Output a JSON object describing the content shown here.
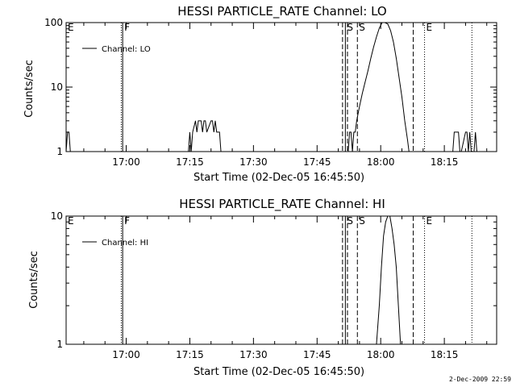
{
  "footer": {
    "timestamp": "2-Dec-2009 22:59"
  },
  "chart_data": [
    {
      "type": "line",
      "title": "HESSI PARTICLE_RATE Channel: LO",
      "xlabel": "Start Time (02-Dec-05 16:45:50)",
      "ylabel": "Counts/sec",
      "yscale": "log",
      "ylim": [
        1,
        100
      ],
      "xlim": [
        "16:45:50",
        "18:27:20"
      ],
      "x_tick_labels": [
        "17:00",
        "17:15",
        "17:30",
        "17:45",
        "18:00",
        "18:15"
      ],
      "y_tick_labels": [
        "1",
        "10",
        "100"
      ],
      "legend": {
        "entries": [
          "Channel: LO"
        ],
        "placement": "top-left"
      },
      "color": "#000000",
      "series": [
        {
          "name": "Channel: LO",
          "x": [
            "16:45:50",
            "16:46:10",
            "16:46:30",
            "16:46:50",
            "16:47:10",
            "17:14:40",
            "17:15:00",
            "17:15:20",
            "17:15:40",
            "17:16:20",
            "17:16:40",
            "17:17:00",
            "17:17:40",
            "17:18:00",
            "17:18:20",
            "17:18:40",
            "17:19:00",
            "17:20:00",
            "17:20:20",
            "17:20:40",
            "17:21:00",
            "17:21:20",
            "17:22:00",
            "17:22:20",
            "17:22:40",
            "17:23:20",
            "17:52:00",
            "17:52:20",
            "17:52:40",
            "17:53:00",
            "17:53:20",
            "17:53:40",
            "17:54:00",
            "17:54:20",
            "17:55:00",
            "17:55:40",
            "17:56:20",
            "17:57:00",
            "17:57:40",
            "17:58:20",
            "17:59:00",
            "17:59:40",
            "18:00:20",
            "18:01:00",
            "18:01:40",
            "18:02:20",
            "18:03:00",
            "18:03:40",
            "18:04:20",
            "18:05:00",
            "18:05:40",
            "18:06:20",
            "18:06:40",
            "18:17:00",
            "18:17:20",
            "18:17:40",
            "18:18:20",
            "18:18:40",
            "18:19:00",
            "18:20:00",
            "18:20:20",
            "18:20:40",
            "18:21:00",
            "18:21:20",
            "18:22:00",
            "18:22:20",
            "18:22:40"
          ],
          "y": [
            1,
            2,
            2,
            1,
            1,
            1,
            2,
            1,
            2,
            3,
            2,
            3,
            3,
            2,
            3,
            3,
            2,
            3,
            3,
            2,
            3,
            2,
            2,
            1,
            1,
            1,
            1,
            1,
            2,
            2,
            1,
            2,
            2,
            3,
            5,
            8,
            12,
            18,
            28,
            42,
            60,
            82,
            100,
            105,
            95,
            75,
            50,
            28,
            14,
            7,
            3,
            1.5,
            1,
            1,
            2,
            2,
            2,
            1,
            1,
            2,
            2,
            1,
            2,
            1,
            1,
            2,
            1
          ]
        }
      ],
      "annotations": [
        {
          "label": "E",
          "time": "16:45:50",
          "style": "solid"
        },
        {
          "label": "",
          "time": "16:58:50",
          "style": "dotted"
        },
        {
          "label": "F",
          "time": "16:59:10",
          "style": "solid"
        },
        {
          "label": "",
          "time": "17:51:00",
          "style": "dashed"
        },
        {
          "label": "S",
          "time": "17:51:40",
          "style": "solid"
        },
        {
          "label": "",
          "time": "17:52:10",
          "style": "dashed"
        },
        {
          "label": "S",
          "time": "17:54:30",
          "style": "dashed"
        },
        {
          "label": "",
          "time": "18:07:40",
          "style": "dashed"
        },
        {
          "label": "E",
          "time": "18:10:20",
          "style": "dotted"
        },
        {
          "label": "",
          "time": "18:21:30",
          "style": "dotted"
        }
      ]
    },
    {
      "type": "line",
      "title": "HESSI PARTICLE_RATE Channel: HI",
      "xlabel": "Start Time (02-Dec-05 16:45:50)",
      "ylabel": "Counts/sec",
      "yscale": "log",
      "ylim": [
        1,
        10
      ],
      "xlim": [
        "16:45:50",
        "18:27:20"
      ],
      "x_tick_labels": [
        "17:00",
        "17:15",
        "17:30",
        "17:45",
        "18:00",
        "18:15"
      ],
      "y_tick_labels": [
        "1",
        "10"
      ],
      "legend": {
        "entries": [
          "Channel: HI"
        ],
        "placement": "top-left"
      },
      "color": "#000000",
      "series": [
        {
          "name": "Channel: HI",
          "x": [
            "17:59:00",
            "17:59:40",
            "18:00:10",
            "18:00:40",
            "18:01:10",
            "18:01:40",
            "18:02:10",
            "18:02:40",
            "18:03:10",
            "18:03:40",
            "18:04:10",
            "18:04:40"
          ],
          "y": [
            1,
            2,
            4,
            7,
            9,
            10.5,
            10,
            8,
            6,
            4,
            2,
            1
          ]
        }
      ],
      "annotations": [
        {
          "label": "E",
          "time": "16:45:50",
          "style": "solid"
        },
        {
          "label": "",
          "time": "16:58:50",
          "style": "dotted"
        },
        {
          "label": "F",
          "time": "16:59:10",
          "style": "solid"
        },
        {
          "label": "",
          "time": "17:51:00",
          "style": "dashed"
        },
        {
          "label": "S",
          "time": "17:51:40",
          "style": "solid"
        },
        {
          "label": "",
          "time": "17:52:10",
          "style": "dashed"
        },
        {
          "label": "S",
          "time": "17:54:30",
          "style": "dashed"
        },
        {
          "label": "",
          "time": "18:07:40",
          "style": "dashed"
        },
        {
          "label": "E",
          "time": "18:10:20",
          "style": "dotted"
        },
        {
          "label": "",
          "time": "18:21:30",
          "style": "dotted"
        }
      ]
    }
  ]
}
